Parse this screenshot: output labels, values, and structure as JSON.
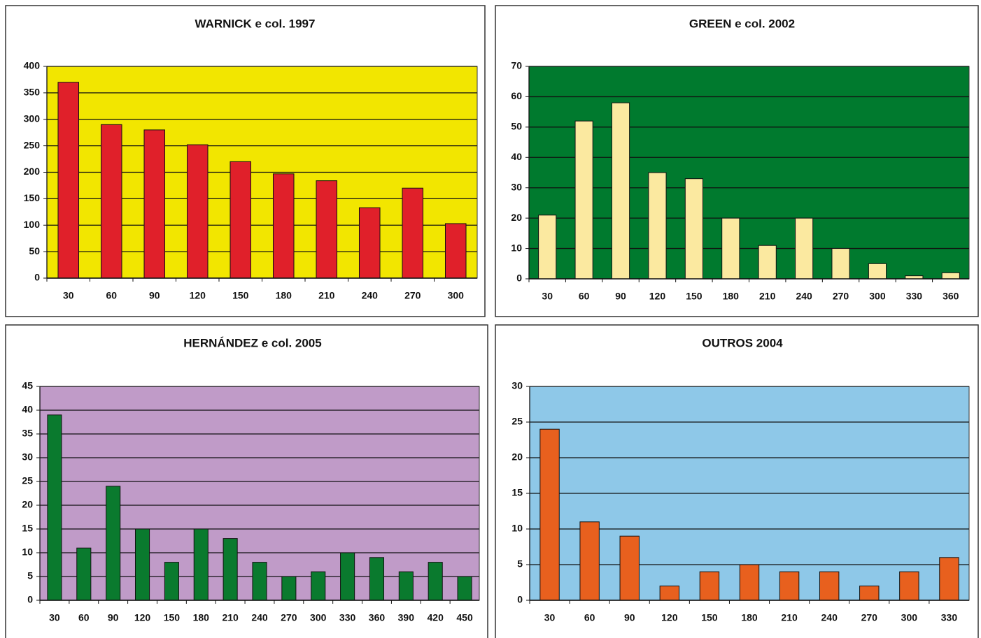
{
  "chart_data": [
    {
      "type": "bar",
      "title": "WARNICK e col. 1997",
      "categories": [
        "30",
        "60",
        "90",
        "120",
        "150",
        "180",
        "210",
        "240",
        "270",
        "300"
      ],
      "values": [
        370,
        290,
        280,
        252,
        220,
        197,
        184,
        133,
        170,
        103
      ],
      "color": "#e0202a",
      "plot_color": "#f2e600",
      "ylim": [
        0,
        400
      ],
      "yticks": [
        0,
        50,
        100,
        150,
        200,
        250,
        300,
        350,
        400
      ],
      "grid": true
    },
    {
      "type": "bar",
      "title": "GREEN e col. 2002",
      "categories": [
        "30",
        "60",
        "90",
        "120",
        "150",
        "180",
        "210",
        "240",
        "270",
        "300",
        "330",
        "360"
      ],
      "values": [
        21,
        52,
        58,
        35,
        33,
        20,
        11,
        20,
        10,
        5,
        1,
        2
      ],
      "color": "#fbe9a0",
      "plot_color": "#007a2e",
      "ylim": [
        0,
        70
      ],
      "yticks": [
        0,
        10,
        20,
        30,
        40,
        50,
        60,
        70
      ],
      "grid": true
    },
    {
      "type": "bar",
      "title": "HERNÁNDEZ e col. 2005",
      "categories": [
        "30",
        "60",
        "90",
        "120",
        "150",
        "180",
        "210",
        "240",
        "270",
        "300",
        "330",
        "360",
        "390",
        "420",
        "450"
      ],
      "values": [
        39,
        11,
        24,
        15,
        8,
        15,
        13,
        8,
        5,
        6,
        10,
        9,
        6,
        8,
        5
      ],
      "color": "#0a7a2e",
      "plot_color": "#c09bc8",
      "ylim": [
        0,
        45
      ],
      "yticks": [
        0,
        5,
        10,
        15,
        20,
        25,
        30,
        35,
        40,
        45
      ],
      "grid": true
    },
    {
      "type": "bar",
      "title": "OUTROS 2004",
      "categories": [
        "30",
        "60",
        "90",
        "120",
        "150",
        "180",
        "210",
        "240",
        "270",
        "300",
        "330"
      ],
      "values": [
        24,
        11,
        9,
        2,
        4,
        5,
        4,
        4,
        2,
        4,
        6
      ],
      "color": "#e8601e",
      "plot_color": "#8ec8e8",
      "ylim": [
        0,
        30
      ],
      "yticks": [
        0,
        5,
        10,
        15,
        20,
        25,
        30
      ],
      "grid": true
    }
  ]
}
